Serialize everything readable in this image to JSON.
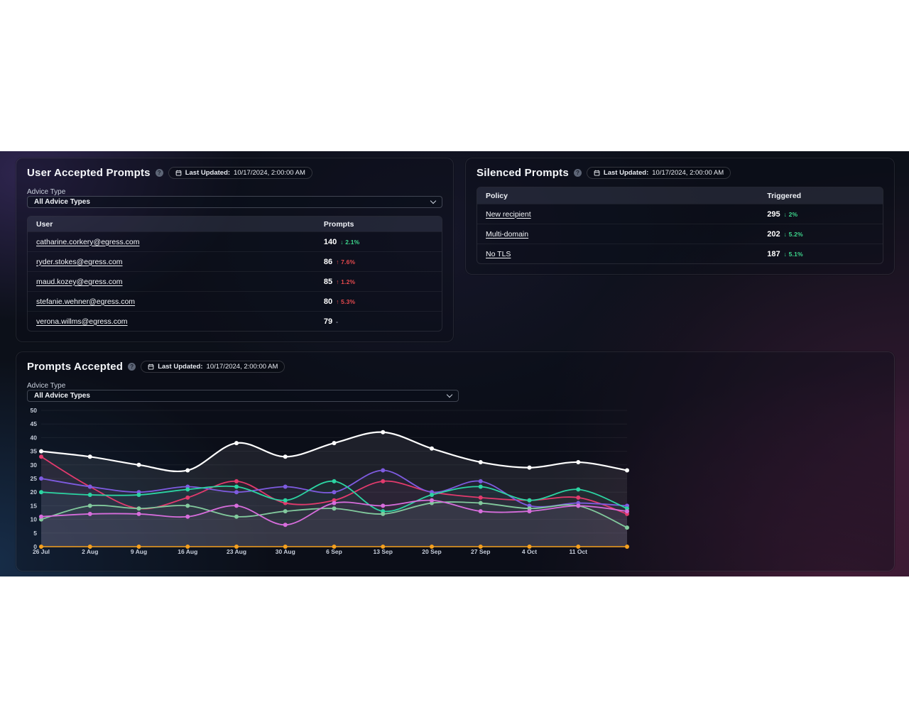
{
  "dashboard": {
    "status_colors": {
      "up": "#e5494d",
      "down": "#3dd68c",
      "neutral": "#9aa1b2"
    },
    "icons": {
      "info_glyph": "?"
    },
    "user_accepted": {
      "title": "User Accepted Prompts",
      "last_updated_label": "Last Updated:",
      "last_updated_value": "10/17/2024, 2:00:00 AM",
      "advice_type_label": "Advice Type",
      "advice_type_selected": "All Advice Types",
      "columns": {
        "user": "User",
        "prompts": "Prompts"
      },
      "rows": [
        {
          "user": "catharine.corkery@egress.com",
          "value": "140",
          "arrow": "↓",
          "delta": "2.1%",
          "dir": "down"
        },
        {
          "user": "ryder.stokes@egress.com",
          "value": "86",
          "arrow": "↑",
          "delta": "7.6%",
          "dir": "up"
        },
        {
          "user": "maud.kozey@egress.com",
          "value": "85",
          "arrow": "↑",
          "delta": "1.2%",
          "dir": "up"
        },
        {
          "user": "stefanie.wehner@egress.com",
          "value": "80",
          "arrow": "↑",
          "delta": "5.3%",
          "dir": "up"
        },
        {
          "user": "verona.willms@egress.com",
          "value": "79",
          "arrow": "",
          "delta": "-",
          "dir": "neutral"
        }
      ]
    },
    "silenced": {
      "title": "Silenced Prompts",
      "last_updated_label": "Last Updated:",
      "last_updated_value": "10/17/2024, 2:00:00 AM",
      "columns": {
        "policy": "Policy",
        "triggered": "Triggered"
      },
      "rows": [
        {
          "policy": "New recipient",
          "value": "295",
          "arrow": "↓",
          "delta": "2%",
          "dir": "down"
        },
        {
          "policy": "Multi-domain",
          "value": "202",
          "arrow": "↓",
          "delta": "5.2%",
          "dir": "down"
        },
        {
          "policy": "No TLS",
          "value": "187",
          "arrow": "↓",
          "delta": "5.1%",
          "dir": "down"
        }
      ]
    },
    "prompts_accepted": {
      "title": "Prompts Accepted",
      "last_updated_label": "Last Updated:",
      "last_updated_value": "10/17/2024, 2:00:00 AM",
      "advice_type_label": "Advice Type",
      "advice_type_selected": "All Advice Types"
    }
  },
  "chart_data": {
    "type": "line",
    "title": "Prompts Accepted",
    "xlabel": "",
    "ylabel": "",
    "ylim": [
      0,
      50
    ],
    "yticks": [
      0,
      5,
      10,
      15,
      20,
      25,
      30,
      35,
      40,
      45,
      50
    ],
    "grid": "horizontal",
    "legend": "none",
    "x_tick_labels": [
      "26 Jul",
      "2 Aug",
      "9 Aug",
      "16 Aug",
      "23 Aug",
      "30 Aug",
      "6 Sep",
      "13 Sep",
      "20 Sep",
      "27 Sep",
      "4 Oct",
      "11 Oct"
    ],
    "points_per_series": 13,
    "layout_note": "13th data point extends past the last labeled tick to the right edge of the plot",
    "series": [
      {
        "name": "white",
        "color": "#ffffff",
        "values": [
          35,
          33,
          30,
          28,
          38,
          33,
          38,
          42,
          36,
          31,
          29,
          31,
          28
        ]
      },
      {
        "name": "rose",
        "color": "#e23a6d",
        "values": [
          33,
          22,
          14,
          18,
          24,
          16,
          17,
          24,
          20,
          18,
          17,
          18,
          12
        ]
      },
      {
        "name": "violet",
        "color": "#7e5be0",
        "values": [
          25,
          22,
          20,
          22,
          20,
          22,
          20,
          28,
          20,
          24,
          15,
          16,
          15
        ]
      },
      {
        "name": "mint",
        "color": "#2cd4a2",
        "values": [
          20,
          19,
          19,
          21,
          22,
          17,
          24,
          13,
          19,
          22,
          17,
          21,
          14
        ]
      },
      {
        "name": "sage",
        "color": "#82ca9d",
        "values": [
          10,
          15,
          14,
          15,
          11,
          13,
          14,
          12,
          16,
          16,
          14,
          15,
          7
        ]
      },
      {
        "name": "orchid",
        "color": "#d76ddc",
        "values": [
          11,
          12,
          12,
          11,
          15,
          8,
          16,
          15,
          17,
          13,
          13,
          15,
          13
        ]
      },
      {
        "name": "amber",
        "color": "#f5a01e",
        "values": [
          0,
          0,
          0,
          0,
          0,
          0,
          0,
          0,
          0,
          0,
          0,
          0,
          0
        ]
      }
    ]
  }
}
